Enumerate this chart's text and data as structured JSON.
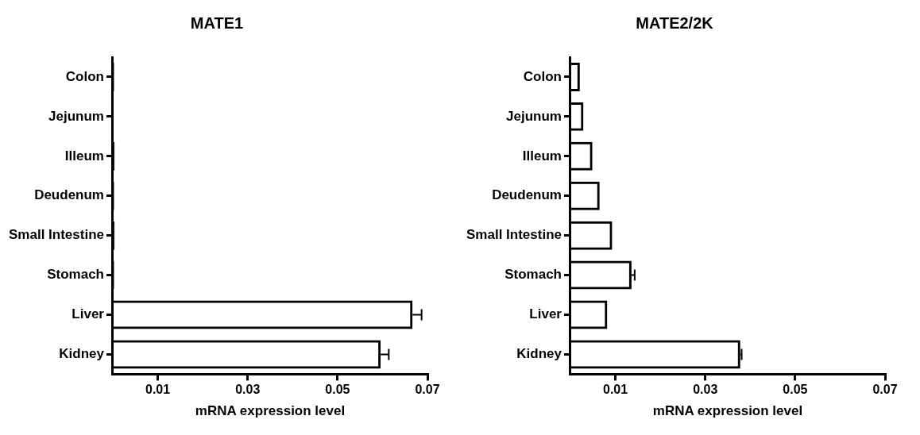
{
  "chart_data": [
    {
      "type": "bar",
      "orientation": "horizontal",
      "title": "MATE1",
      "xlabel": "mRNA expression level",
      "categories": [
        "Colon",
        "Jejunum",
        "Illeum",
        "Deudenum",
        "Small Intestine",
        "Stomach",
        "Liver",
        "Kidney"
      ],
      "values": [
        0.0003,
        0.0002,
        0.0004,
        0.0003,
        0.0004,
        0.0003,
        0.0667,
        0.0596
      ],
      "errors": [
        null,
        null,
        null,
        null,
        null,
        null,
        [
          0.0667,
          0.0687
        ],
        [
          0.0596,
          0.0614
        ]
      ],
      "color": "#000000",
      "xlim": [
        0,
        0.07
      ],
      "xticks": [
        0.01,
        0.03,
        0.05,
        0.07
      ],
      "grid": false
    },
    {
      "type": "bar",
      "orientation": "horizontal",
      "title": "MATE2/2K",
      "xlabel": "mRNA expression level",
      "categories": [
        "Colon",
        "Jejunum",
        "Illeum",
        "Deudenum",
        "Small Intestine",
        "Stomach",
        "Liver",
        "Kidney"
      ],
      "values": [
        0.0021,
        0.0029,
        0.0049,
        0.0065,
        0.0093,
        0.0136,
        0.0082,
        0.0378
      ],
      "errors": [
        null,
        null,
        null,
        null,
        null,
        [
          0.0136,
          0.0143
        ],
        null,
        [
          0.0378,
          0.0381
        ]
      ],
      "color": "#000000",
      "xlim": [
        0,
        0.07
      ],
      "xticks": [
        0.01,
        0.03,
        0.05,
        0.07
      ],
      "grid": false
    }
  ]
}
